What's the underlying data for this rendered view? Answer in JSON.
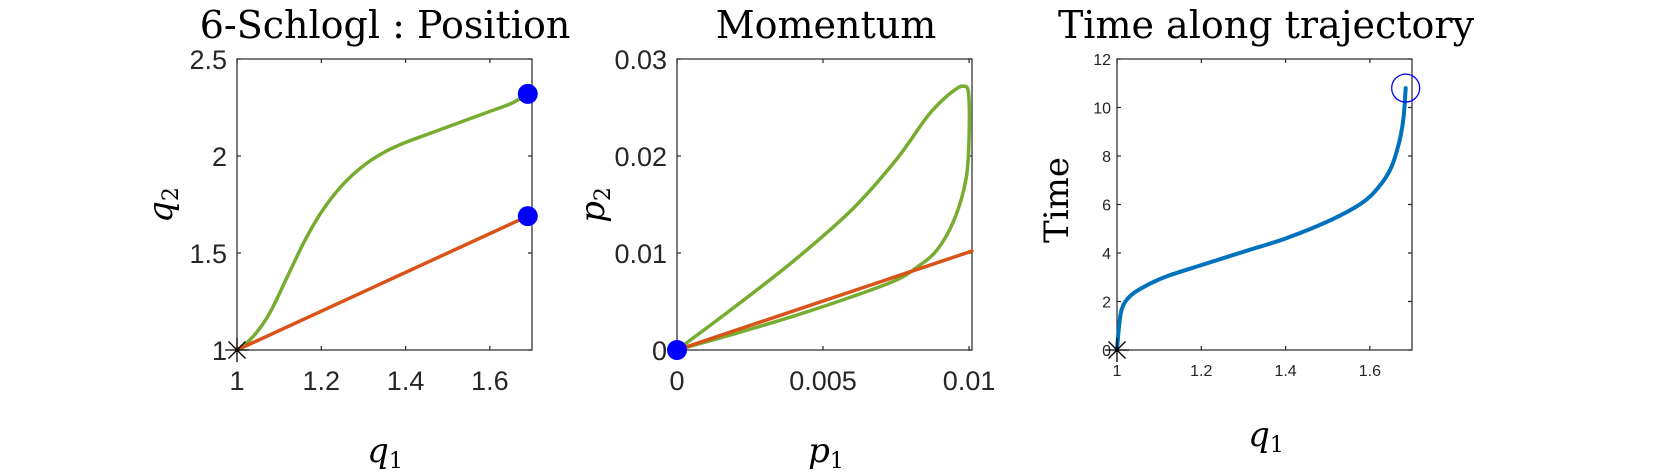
{
  "chart_data": [
    {
      "type": "line",
      "title": "6-Schlogl : Position",
      "xlabel": "q",
      "xlabel_sub": "1",
      "ylabel": "q",
      "ylabel_sub": "2",
      "xlim": [
        1,
        1.7
      ],
      "ylim": [
        1,
        2.5
      ],
      "xticks": [
        "1",
        "1.2",
        "1.4",
        "1.6"
      ],
      "yticks": [
        "1",
        "1.5",
        "2",
        "2.5"
      ],
      "series": [
        {
          "color": "#77ac30",
          "x": [
            1.0,
            1.02,
            1.05,
            1.08,
            1.12,
            1.16,
            1.2,
            1.25,
            1.3,
            1.35,
            1.4,
            1.45,
            1.5,
            1.55,
            1.6,
            1.65,
            1.69
          ],
          "y": [
            1.0,
            1.03,
            1.1,
            1.2,
            1.38,
            1.56,
            1.71,
            1.85,
            1.95,
            2.02,
            2.07,
            2.11,
            2.15,
            2.19,
            2.23,
            2.27,
            2.32
          ]
        },
        {
          "color": "#d95319",
          "x": [
            1.0,
            1.69
          ],
          "y": [
            1.0,
            1.69
          ]
        }
      ],
      "endpoints": [
        {
          "x": 1.69,
          "y": 2.32
        },
        {
          "x": 1.69,
          "y": 1.69
        }
      ],
      "start_marker": {
        "x": 1.0,
        "y": 1.0
      },
      "marker_color": "#0000ff"
    },
    {
      "type": "line",
      "title": "Momentum",
      "xlabel": "p",
      "xlabel_sub": "1",
      "ylabel": "p",
      "ylabel_sub": "2",
      "xlim": [
        0,
        0.0101
      ],
      "ylim": [
        0,
        0.03
      ],
      "xticks": [
        "0",
        "0.005",
        "0.01"
      ],
      "yticks": [
        "0",
        "0.01",
        "0.02",
        "0.03"
      ],
      "series": [
        {
          "color": "#77ac30",
          "x": [
            0,
            0.002,
            0.004,
            0.006,
            0.0075,
            0.0085,
            0.009,
            0.0095,
            0.0098,
            0.00998,
            0.01,
            0.0099,
            0.0095,
            0.0089,
            0.0082,
            0.0075,
            0.006,
            0.004,
            0.002,
            0
          ],
          "y": [
            0,
            0.0045,
            0.0092,
            0.0145,
            0.0196,
            0.0238,
            0.0255,
            0.0268,
            0.0272,
            0.0265,
            0.022,
            0.0177,
            0.0135,
            0.0103,
            0.0085,
            0.0072,
            0.0055,
            0.0035,
            0.0017,
            0
          ]
        },
        {
          "color": "#d95319",
          "x": [
            0,
            0.0101
          ],
          "y": [
            0,
            0.0102
          ]
        }
      ],
      "endpoints": [],
      "start_marker_filled": {
        "x": 0,
        "y": 0
      },
      "marker_color": "#0000ff"
    },
    {
      "type": "line",
      "title": "Time along trajectory",
      "xlabel": "q",
      "xlabel_sub": "1",
      "ylabel": "Time",
      "ylabel_sub": "",
      "xlim": [
        1,
        1.7
      ],
      "ylim": [
        0,
        12
      ],
      "xticks": [
        "1",
        "1.2",
        "1.4",
        "1.6"
      ],
      "yticks": [
        "0",
        "2",
        "4",
        "6",
        "8",
        "10",
        "12"
      ],
      "series": [
        {
          "color": "#0072bd",
          "x": [
            1.0,
            1.005,
            1.01,
            1.02,
            1.04,
            1.08,
            1.12,
            1.2,
            1.3,
            1.4,
            1.5,
            1.58,
            1.62,
            1.65,
            1.67,
            1.68,
            1.685
          ],
          "y": [
            0,
            1.0,
            1.6,
            2.0,
            2.35,
            2.75,
            3.05,
            3.5,
            4.05,
            4.6,
            5.3,
            6.05,
            6.7,
            7.5,
            8.6,
            9.6,
            10.8
          ]
        }
      ],
      "endpoints": [],
      "start_marker": {
        "x": 1.0,
        "y": 0
      },
      "open_circle": {
        "x": 1.685,
        "y": 10.8
      },
      "marker_color": "#0000ff"
    }
  ]
}
